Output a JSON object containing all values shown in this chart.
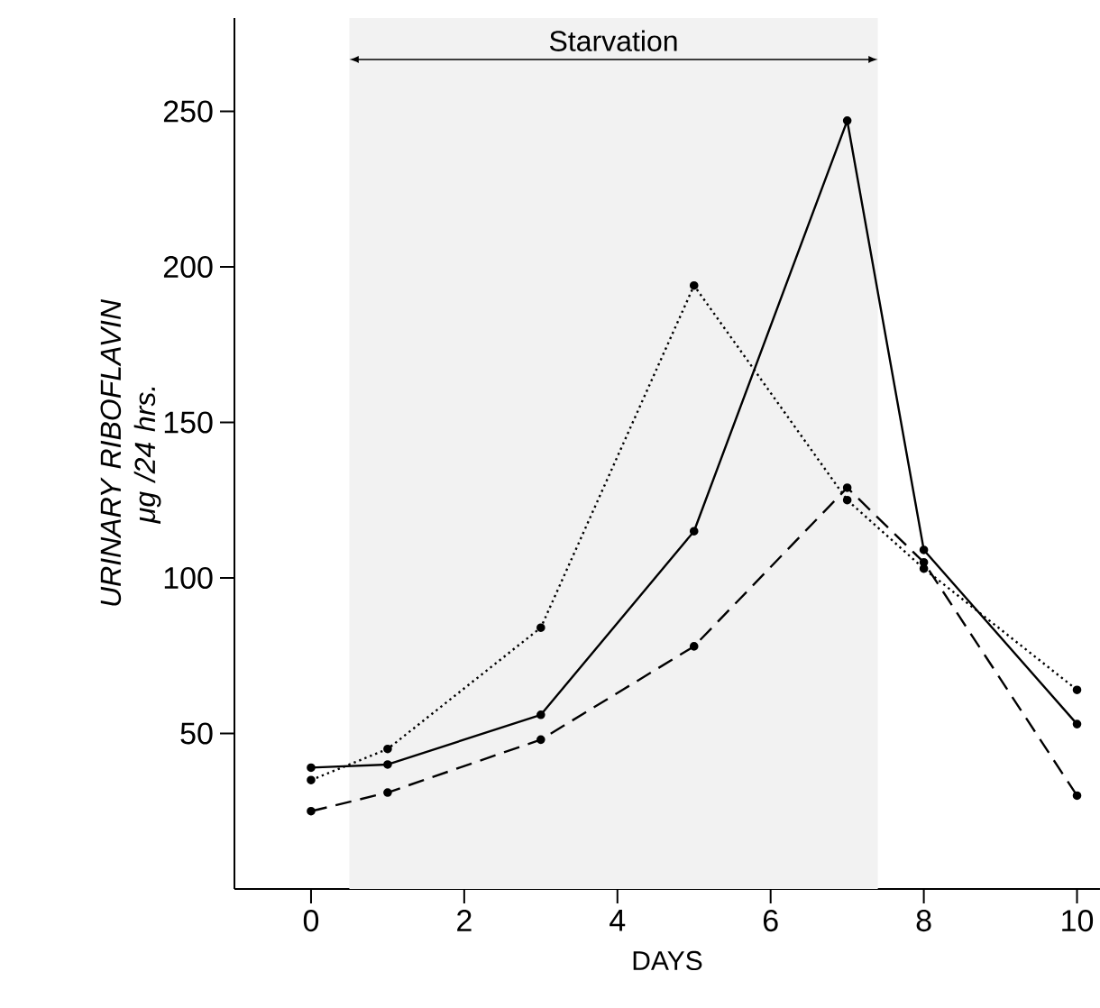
{
  "chart_data": {
    "type": "line",
    "xlabel": "DAYS",
    "ylabel": "URINARY RIBOFLAVIN μg /24 hrs.",
    "x": [
      0,
      1,
      3,
      5,
      7,
      8,
      10
    ],
    "series": [
      {
        "color": "#000000",
        "line_style": "solid",
        "values": [
          39,
          40,
          56,
          115,
          247,
          109,
          53
        ]
      },
      {
        "color": "#000000",
        "line_style": "dotted",
        "values": [
          35,
          45,
          84,
          194,
          125,
          103,
          64
        ]
      },
      {
        "color": "#000000",
        "line_style": "dashed",
        "values": [
          25,
          31,
          48,
          78,
          129,
          105,
          30
        ]
      }
    ],
    "marker": "circle",
    "xlim": [
      -1,
      10.3
    ],
    "ylim": [
      0,
      280
    ],
    "xticks": [
      0,
      2,
      4,
      6,
      8,
      10
    ],
    "yticks": [
      50,
      100,
      150,
      200,
      250
    ],
    "bands": [
      {
        "axis": "x",
        "from": 0.5,
        "to": 7.4,
        "label": "Starvation",
        "color": "#f2f2f2"
      }
    ]
  }
}
